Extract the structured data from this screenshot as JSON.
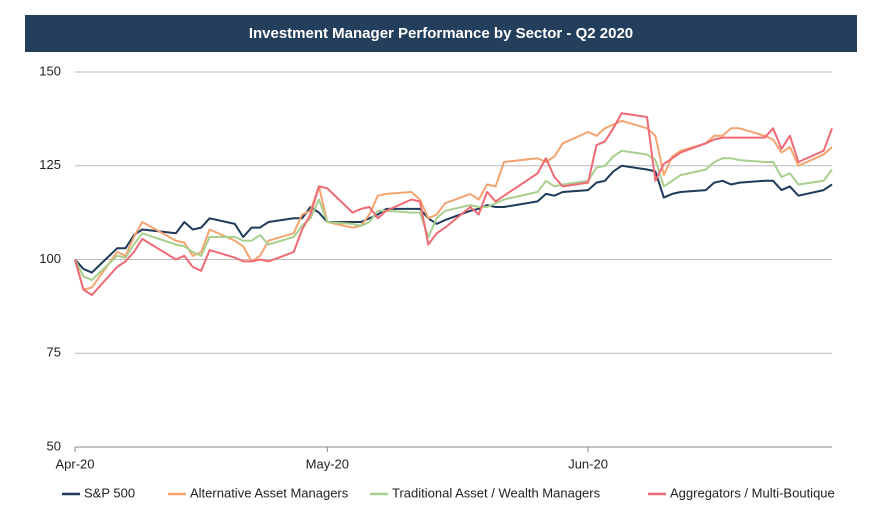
{
  "chart_data": {
    "type": "line",
    "title": "Investment Manager Performance by Sector - Q2 2020",
    "x": [
      0,
      1,
      2,
      5,
      6,
      7,
      8,
      12,
      13,
      14,
      15,
      16,
      19,
      20,
      21,
      22,
      23,
      26,
      27,
      28,
      29,
      30,
      33,
      34,
      35,
      36,
      37,
      40,
      41,
      42,
      43,
      44,
      47,
      48,
      49,
      50,
      51,
      55,
      56,
      57,
      58,
      61,
      62,
      63,
      64,
      65,
      68,
      69,
      70,
      71,
      72,
      75,
      76,
      77,
      78,
      79,
      82,
      83,
      84,
      85,
      86,
      89,
      90
    ],
    "xlim": [
      0,
      90
    ],
    "xticks": [
      {
        "value": 0,
        "label": "Apr-20"
      },
      {
        "value": 30,
        "label": "May-20"
      },
      {
        "value": 61,
        "label": "Jun-20"
      }
    ],
    "ylim": [
      50,
      150
    ],
    "yticks": [
      50,
      75,
      100,
      125,
      150
    ],
    "grid": true,
    "legend": "bottom",
    "series": [
      {
        "name": "S&P 500",
        "color": "#1f3a5a",
        "values": [
          100,
          97.5,
          96.5,
          103,
          103,
          106.5,
          108,
          107,
          110,
          108,
          108.5,
          111,
          109.5,
          106,
          108.5,
          108.5,
          110,
          111,
          111,
          114,
          112.5,
          110,
          110,
          110,
          111,
          112,
          113.5,
          113.5,
          113.5,
          111,
          109.5,
          110.5,
          113,
          113.5,
          114.5,
          114,
          114,
          115.5,
          117.5,
          117,
          118,
          118.5,
          120.5,
          121,
          123.5,
          125,
          124,
          123.5,
          116.5,
          117.5,
          118,
          118.5,
          120.5,
          121,
          120,
          120.5,
          121,
          121,
          118.5,
          119.5,
          117,
          118.5,
          120
        ]
      },
      {
        "name": "Alternative Asset Managers",
        "color": "#f4a46e",
        "values": [
          100,
          92,
          92.5,
          102,
          101,
          106,
          110,
          105,
          104.5,
          101,
          102,
          108,
          105,
          103.5,
          99.5,
          101,
          105,
          107,
          112,
          113,
          119.5,
          110,
          108.5,
          109,
          112,
          117,
          117.5,
          118,
          116,
          111,
          112,
          115,
          117.5,
          116,
          120,
          119.5,
          126,
          127,
          126,
          127.5,
          131,
          134,
          133,
          135,
          136,
          137,
          135,
          133,
          122.5,
          127.5,
          129,
          131,
          133,
          133,
          135,
          135,
          133,
          132,
          128.5,
          130,
          125,
          128,
          130
        ]
      },
      {
        "name": "Traditional Asset / Wealth Managers",
        "color": "#a8cf8e",
        "values": [
          100,
          95.5,
          94.5,
          101,
          100.5,
          104,
          107,
          104,
          103.5,
          102,
          101,
          106,
          106,
          105,
          105,
          106.5,
          104,
          106,
          109,
          111,
          116,
          110,
          109.5,
          109,
          110,
          113,
          113,
          112.5,
          112.5,
          106,
          111,
          113,
          114.5,
          114,
          114,
          115,
          116,
          118,
          121,
          119.5,
          120,
          121,
          124.5,
          125,
          127.5,
          129,
          128,
          126.5,
          119.5,
          121,
          122.5,
          124,
          126,
          127,
          127,
          126.5,
          126,
          126,
          122,
          123,
          120,
          121,
          124
        ]
      },
      {
        "name": "Aggregators / Multi-Boutique",
        "color": "#ef6a74",
        "values": [
          100,
          92,
          90.5,
          98,
          99.5,
          102,
          105.5,
          100,
          101,
          98,
          97,
          102.5,
          100.5,
          99.5,
          99.5,
          100,
          99.5,
          102,
          108,
          112,
          119.5,
          119,
          112.5,
          113.5,
          114,
          111,
          113,
          116,
          115.5,
          104,
          107,
          108.5,
          114,
          112,
          118,
          115.5,
          117,
          123,
          127,
          122,
          119.5,
          120.5,
          130.5,
          131.5,
          135,
          139,
          138,
          121,
          125.5,
          127,
          128.5,
          131,
          132,
          132.5,
          132.5,
          132.5,
          132.5,
          135,
          129.5,
          133,
          126,
          129,
          135
        ]
      }
    ]
  }
}
